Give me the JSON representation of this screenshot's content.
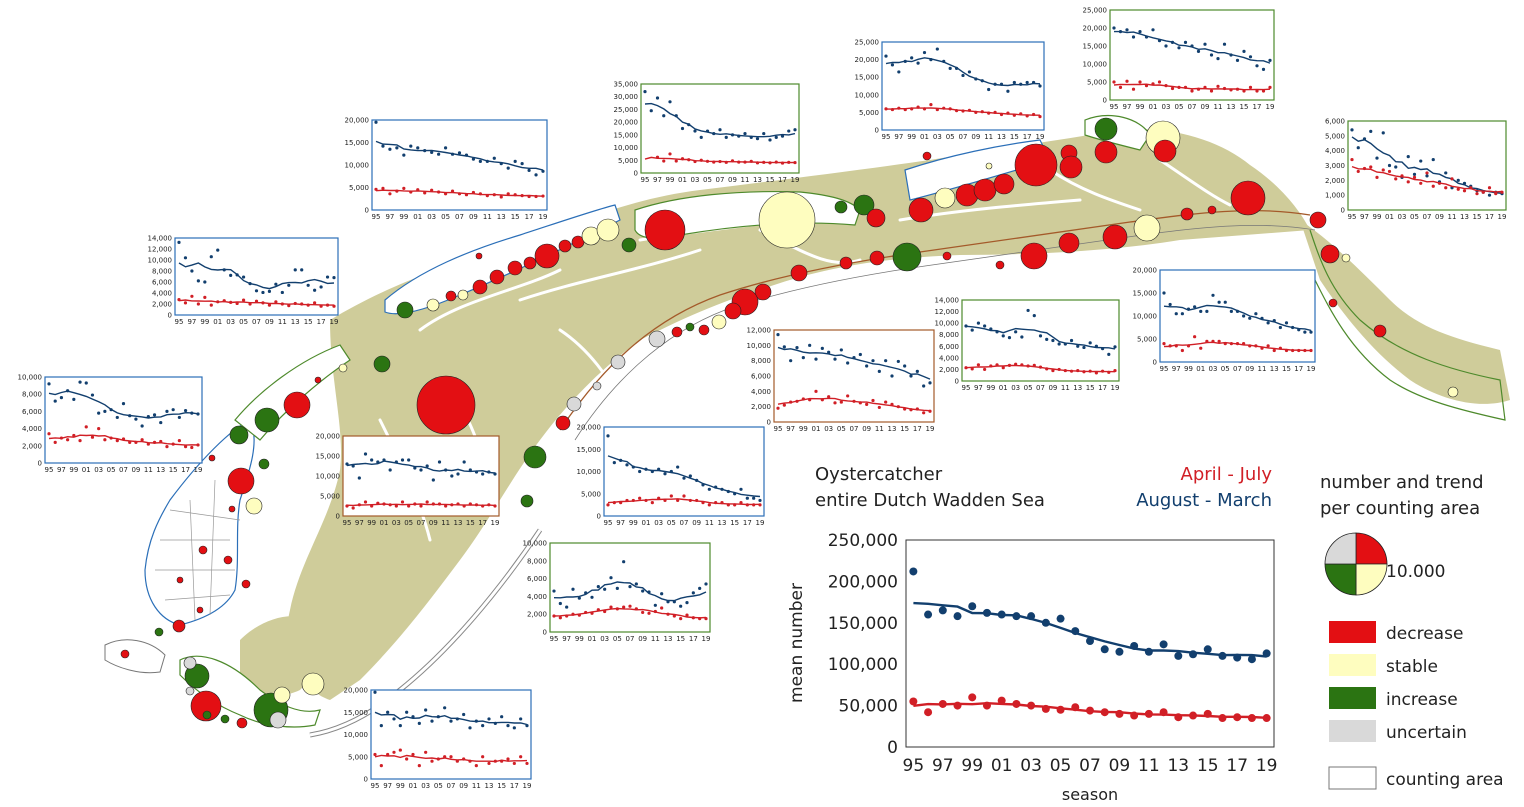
{
  "colors": {
    "decrease": "#e30f13",
    "stable": "#fefdbf",
    "increase": "#2b7412",
    "uncertain": "#d9d9d9",
    "summer": "#d11f26",
    "winter": "#123f6e",
    "tidal_flat": "#cfcc9a",
    "area_outline": "#777777",
    "frame_blue": "#2b6fb8",
    "frame_green": "#4e8a2c",
    "frame_brown": "#a45a2a"
  },
  "title": {
    "line1": "Oystercatcher",
    "line2": "entire Dutch Wadden Sea",
    "summer_label": "April - July",
    "winter_label": "August - March"
  },
  "legend": {
    "heading1": "number and trend",
    "heading2": "per counting area",
    "size_label": "10.000",
    "items": [
      {
        "label": "decrease",
        "color": "#e30f13"
      },
      {
        "label": "stable",
        "color": "#fefdbf"
      },
      {
        "label": "increase",
        "color": "#2b7412"
      },
      {
        "label": "uncertain",
        "color": "#d9d9d9"
      }
    ],
    "area_label": "counting area"
  },
  "season_ticks": [
    "95",
    "97",
    "99",
    "01",
    "03",
    "05",
    "07",
    "09",
    "11",
    "13",
    "15",
    "17",
    "19"
  ],
  "chart_data": [
    {
      "id": "main",
      "type": "scatter",
      "title": "Oystercatcher entire Dutch Wadden Sea",
      "xlabel": "season",
      "ylabel": "mean number",
      "x": [
        1995,
        1996,
        1997,
        1998,
        1999,
        2000,
        2001,
        2002,
        2003,
        2004,
        2005,
        2006,
        2007,
        2008,
        2009,
        2010,
        2011,
        2012,
        2013,
        2014,
        2015,
        2016,
        2017,
        2018,
        2019
      ],
      "xlim": [
        1994.5,
        2019.5
      ],
      "ylim": [
        0,
        250000
      ],
      "yticks": [
        0,
        50000,
        100000,
        150000,
        200000,
        250000
      ],
      "ytick_labels": [
        "0",
        "50,000",
        "100,000",
        "150,000",
        "200,000",
        "250,000"
      ],
      "series": [
        {
          "name": "August - March",
          "color": "#123f6e",
          "values": [
            212000,
            160000,
            165000,
            158000,
            170000,
            162000,
            160000,
            158000,
            158000,
            150000,
            155000,
            140000,
            128000,
            118000,
            115000,
            122000,
            115000,
            124000,
            110000,
            112000,
            118000,
            110000,
            108000,
            106000,
            113000
          ]
        },
        {
          "name": "April - July",
          "color": "#d11f26",
          "values": [
            55000,
            42000,
            52000,
            50000,
            60000,
            50000,
            56000,
            52000,
            50000,
            46000,
            45000,
            48000,
            44000,
            42000,
            40000,
            38000,
            40000,
            42000,
            36000,
            38000,
            40000,
            35000,
            36000,
            35000,
            35000
          ]
        }
      ]
    },
    {
      "id": "c1",
      "ylim": [
        0,
        10000
      ],
      "yticks": [
        0,
        2000,
        4000,
        6000,
        8000,
        10000
      ],
      "ytick_labels": [
        "0",
        "2,000",
        "4,000",
        "6,000",
        "8,000",
        "10,000"
      ],
      "winter": [
        9200,
        7200,
        7600,
        8400,
        7400,
        9400,
        9300,
        7900,
        5800,
        6000,
        6200,
        5300,
        6900,
        5500,
        5100,
        4300,
        5400,
        5600,
        4700,
        6000,
        6200,
        5300,
        6100,
        5800,
        5700
      ],
      "summer": [
        3400,
        2400,
        2900,
        2700,
        3200,
        2600,
        4200,
        3000,
        4000,
        2700,
        2900,
        2600,
        2800,
        2400,
        2400,
        2700,
        2200,
        2400,
        2500,
        1900,
        2200,
        2600,
        1900,
        1800,
        2100
      ]
    },
    {
      "id": "c2",
      "ylim": [
        0,
        14000
      ],
      "yticks": [
        0,
        2000,
        4000,
        6000,
        8000,
        10000,
        12000,
        14000
      ],
      "ytick_labels": [
        "0",
        "2,000",
        "4,000",
        "6,000",
        "8,000",
        "10,000",
        "12,000",
        "14,000"
      ],
      "winter": [
        13200,
        10400,
        8000,
        6200,
        6000,
        10600,
        11800,
        8200,
        7200,
        7300,
        6900,
        5700,
        4400,
        4100,
        4300,
        5600,
        4100,
        5400,
        8200,
        8200,
        5400,
        4500,
        5100,
        6900,
        6800
      ],
      "summer": [
        2800,
        2200,
        3400,
        2000,
        3200,
        1800,
        2400,
        2600,
        2300,
        2100,
        2700,
        2000,
        2500,
        2200,
        1800,
        2400,
        2000,
        1700,
        2100,
        2000,
        1800,
        2200,
        1600,
        1800,
        1600
      ]
    },
    {
      "id": "c3",
      "ylim": [
        0,
        20000
      ],
      "yticks": [
        0,
        5000,
        10000,
        15000,
        20000
      ],
      "ytick_labels": [
        "0",
        "5,000",
        "10,000",
        "15,000",
        "20,000"
      ],
      "winter": [
        19500,
        14200,
        13500,
        13800,
        12200,
        14200,
        13800,
        13200,
        12800,
        12400,
        13800,
        12400,
        12700,
        12200,
        11300,
        10800,
        10800,
        11500,
        10300,
        9300,
        10800,
        10300,
        8800,
        7800,
        8600
      ],
      "summer": [
        4600,
        4800,
        3600,
        4200,
        4800,
        4000,
        4500,
        3800,
        4400,
        4000,
        3600,
        4200,
        3600,
        3400,
        3900,
        3600,
        3200,
        3400,
        2900,
        3600,
        3400,
        3200,
        3000,
        3000,
        3100
      ]
    },
    {
      "id": "c4",
      "ylim": [
        0,
        35000
      ],
      "yticks": [
        0,
        5000,
        10000,
        15000,
        20000,
        25000,
        30000,
        35000
      ],
      "ytick_labels": [
        "0",
        "5,000",
        "10,000",
        "15,000",
        "20,000",
        "25,000",
        "30,000",
        "35,000"
      ],
      "winter": [
        32000,
        24500,
        29500,
        22500,
        28000,
        22500,
        17500,
        19000,
        16500,
        14000,
        16500,
        15500,
        17000,
        14000,
        15000,
        14500,
        15500,
        14000,
        13500,
        15500,
        13000,
        14000,
        14500,
        16500,
        17000
      ],
      "summer": [
        null,
        null,
        6200,
        4700,
        7500,
        4700,
        5600,
        5200,
        4500,
        5000,
        4600,
        4300,
        4500,
        4200,
        4800,
        4300,
        4300,
        4600,
        4000,
        4200,
        4000,
        4300,
        3900,
        4200,
        4100
      ]
    },
    {
      "id": "c5",
      "ylim": [
        0,
        25000
      ],
      "yticks": [
        0,
        5000,
        10000,
        15000,
        20000,
        25000
      ],
      "ytick_labels": [
        "0",
        "5,000",
        "10,000",
        "15,000",
        "20,000",
        "25,000"
      ],
      "winter": [
        21000,
        18500,
        16500,
        19500,
        20500,
        19000,
        22000,
        20000,
        23000,
        19500,
        17500,
        17500,
        15500,
        16500,
        14500,
        14000,
        11500,
        13000,
        13000,
        11000,
        13500,
        13000,
        13500,
        13500,
        12500
      ],
      "summer": [
        6000,
        5800,
        6200,
        5800,
        6000,
        6500,
        6000,
        7200,
        5800,
        6200,
        6000,
        5500,
        5400,
        5600,
        5000,
        5200,
        4800,
        5000,
        4400,
        4800,
        4200,
        4600,
        4000,
        4400,
        3800
      ]
    },
    {
      "id": "c6",
      "ylim": [
        0,
        25000
      ],
      "yticks": [
        0,
        5000,
        10000,
        15000,
        20000,
        25000
      ],
      "ytick_labels": [
        "0",
        "5,000",
        "10,000",
        "15,000",
        "20,000",
        "25,000"
      ],
      "winter": [
        20000,
        19000,
        19500,
        17500,
        19000,
        17500,
        19500,
        16500,
        15000,
        16000,
        14500,
        16000,
        15000,
        13500,
        15500,
        12500,
        11500,
        15500,
        12500,
        11000,
        13500,
        12000,
        9500,
        8500,
        11000
      ],
      "summer": [
        5000,
        3500,
        5200,
        3000,
        5000,
        4000,
        4500,
        5000,
        4000,
        3200,
        3500,
        3500,
        2500,
        3000,
        3500,
        2500,
        3800,
        3200,
        2800,
        3000,
        2500,
        3500,
        2500,
        2500,
        3500
      ]
    },
    {
      "id": "c7",
      "ylim": [
        0,
        6000
      ],
      "yticks": [
        0,
        1000,
        2000,
        3000,
        4000,
        5000,
        6000
      ],
      "ytick_labels": [
        "0",
        "1,000",
        "2,000",
        "3,000",
        "4,000",
        "5,000",
        "6,000"
      ],
      "winter": [
        5400,
        4200,
        4800,
        5300,
        3500,
        5200,
        3000,
        2900,
        2200,
        3600,
        2400,
        3300,
        2300,
        3400,
        1900,
        2500,
        1500,
        2000,
        1800,
        1600,
        1300,
        1200,
        1000,
        1200,
        1100
      ],
      "summer": [
        3400,
        2600,
        2800,
        2900,
        2200,
        2700,
        2600,
        2100,
        2300,
        1900,
        2200,
        1800,
        2500,
        1600,
        1800,
        1500,
        2100,
        1400,
        1300,
        1500,
        1100,
        1200,
        1500,
        1100,
        1200
      ]
    },
    {
      "id": "c8",
      "ylim": [
        0,
        20000
      ],
      "yticks": [
        0,
        5000,
        10000,
        15000,
        20000
      ],
      "ytick_labels": [
        "0",
        "5,000",
        "10,000",
        "15,000",
        "20,000"
      ],
      "winter": [
        15000,
        12500,
        10500,
        10500,
        11500,
        12000,
        11000,
        11000,
        14500,
        13000,
        13000,
        11000,
        11000,
        10000,
        9500,
        10500,
        9500,
        8500,
        9000,
        7500,
        8500,
        7500,
        7000,
        6500,
        6500
      ],
      "summer": [
        4000,
        3500,
        3500,
        2500,
        3500,
        5500,
        3000,
        4500,
        4500,
        4500,
        4000,
        4000,
        4000,
        4000,
        3500,
        3500,
        3000,
        3500,
        2500,
        3000,
        2500,
        2500,
        2500,
        2500,
        2500
      ]
    },
    {
      "id": "c9",
      "ylim": [
        0,
        14000
      ],
      "yticks": [
        0,
        2000,
        4000,
        6000,
        8000,
        10000,
        12000,
        14000
      ],
      "ytick_labels": [
        "0",
        "2,000",
        "4,000",
        "6,000",
        "8,000",
        "10,000",
        "12,000",
        "14,000"
      ],
      "winter": [
        9500,
        8800,
        10000,
        9500,
        9000,
        8500,
        7800,
        7500,
        8500,
        7600,
        12200,
        11300,
        7800,
        7200,
        7000,
        6400,
        6400,
        7000,
        6000,
        5800,
        6600,
        6000,
        5600,
        4600,
        5900
      ],
      "summer": [
        2300,
        2100,
        2800,
        2000,
        2600,
        2800,
        2300,
        2700,
        2900,
        2800,
        2600,
        2700,
        2400,
        2100,
        1800,
        2000,
        1800,
        1700,
        1800,
        1600,
        1700,
        1400,
        1700,
        1500,
        1800
      ]
    },
    {
      "id": "c10",
      "ylim": [
        0,
        12000
      ],
      "yticks": [
        0,
        2000,
        4000,
        6000,
        8000,
        10000,
        12000
      ],
      "ytick_labels": [
        "0",
        "2,000",
        "4,000",
        "6,000",
        "8,000",
        "10,000",
        "12,000"
      ],
      "winter": [
        11400,
        9800,
        8000,
        9700,
        8400,
        10000,
        8200,
        9600,
        9100,
        8200,
        9400,
        7700,
        8400,
        8800,
        7300,
        8000,
        6600,
        8000,
        6000,
        7900,
        7300,
        6000,
        6600,
        4700,
        5100
      ],
      "summer": [
        1800,
        2200,
        2600,
        2700,
        3000,
        2900,
        4000,
        2900,
        3300,
        2500,
        2600,
        3400,
        2700,
        2500,
        2300,
        2800,
        1900,
        2600,
        2300,
        2000,
        1700,
        1600,
        1700,
        1200,
        1400
      ]
    },
    {
      "id": "c11",
      "ylim": [
        0,
        20000
      ],
      "yticks": [
        0,
        5000,
        10000,
        15000,
        20000
      ],
      "ytick_labels": [
        "0",
        "5,000",
        "10,000",
        "15,000",
        "20,000"
      ],
      "winter": [
        13000,
        12500,
        9500,
        15500,
        14000,
        13500,
        14000,
        11500,
        13500,
        14000,
        14000,
        12000,
        11500,
        12500,
        9000,
        13500,
        11500,
        10000,
        10500,
        13500,
        11500,
        11000,
        10500,
        11000,
        10500
      ],
      "summer": [
        2500,
        2000,
        2800,
        3500,
        2500,
        3200,
        3000,
        2800,
        2500,
        3500,
        2500,
        3000,
        2500,
        3500,
        3000,
        3000,
        2500,
        2800,
        3000,
        2500,
        3000,
        2800,
        2500,
        2800,
        2500
      ]
    },
    {
      "id": "c12",
      "ylim": [
        0,
        20000
      ],
      "yticks": [
        0,
        5000,
        10000,
        15000,
        20000
      ],
      "ytick_labels": [
        "0",
        "5,000",
        "10,000",
        "15,000",
        "20,000"
      ],
      "winter": [
        18000,
        12000,
        12500,
        11500,
        11000,
        10000,
        10500,
        10000,
        10500,
        9500,
        10000,
        11000,
        8500,
        9000,
        8000,
        7000,
        6000,
        6500,
        6000,
        5500,
        5000,
        6000,
        4000,
        4000,
        3500
      ],
      "summer": [
        2500,
        3000,
        3000,
        3500,
        3500,
        4000,
        3500,
        3000,
        4000,
        3500,
        4500,
        3500,
        4500,
        3500,
        3500,
        3000,
        2500,
        3000,
        3000,
        2500,
        2500,
        3000,
        2500,
        2500,
        2500
      ]
    },
    {
      "id": "c13",
      "ylim": [
        0,
        10000
      ],
      "yticks": [
        0,
        2000,
        4000,
        6000,
        8000,
        10000
      ],
      "ytick_labels": [
        "0",
        "2,000",
        "4,000",
        "6,000",
        "8,000",
        "10,000"
      ],
      "winter": [
        4600,
        3200,
        2800,
        4800,
        3800,
        4400,
        3900,
        5100,
        4800,
        6100,
        4900,
        7900,
        5100,
        5400,
        4600,
        4500,
        3000,
        4300,
        3400,
        3400,
        2900,
        3300,
        4400,
        4900,
        5400
      ],
      "summer": [
        1800,
        1600,
        1800,
        2000,
        1900,
        2200,
        2100,
        2500,
        2300,
        2800,
        2600,
        2800,
        2900,
        2600,
        2200,
        2100,
        2300,
        2700,
        2000,
        1800,
        1500,
        1900,
        1600,
        1500,
        1500
      ]
    },
    {
      "id": "c14",
      "ylim": [
        0,
        20000
      ],
      "yticks": [
        0,
        5000,
        10000,
        15000,
        20000
      ],
      "ytick_labels": [
        "0",
        "5,000",
        "10,000",
        "15,000",
        "20,000"
      ],
      "winter": [
        19500,
        12000,
        15000,
        13500,
        12000,
        15000,
        14000,
        12500,
        15500,
        13000,
        14000,
        16000,
        13000,
        13500,
        14500,
        11500,
        13000,
        12000,
        13500,
        12500,
        14000,
        12000,
        11500,
        13500,
        12000
      ],
      "summer": [
        5500,
        3000,
        5500,
        6000,
        6500,
        4500,
        5500,
        3000,
        6000,
        4000,
        4500,
        5000,
        5000,
        4000,
        4500,
        4000,
        3000,
        5000,
        3500,
        4000,
        4000,
        4500,
        3500,
        5000,
        3500
      ]
    }
  ]
}
